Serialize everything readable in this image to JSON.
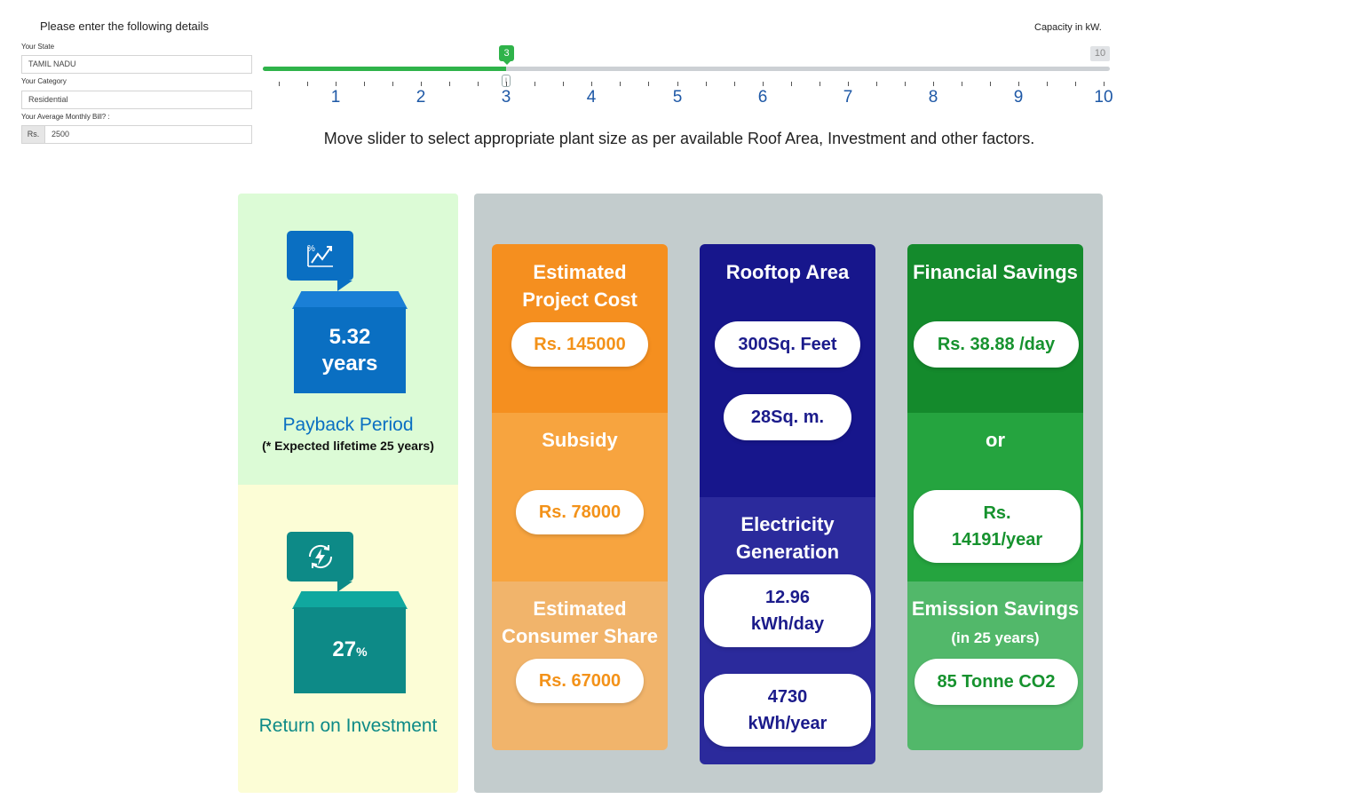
{
  "form": {
    "title": "Please enter the following details",
    "state_label": "Your State",
    "state_value": "TAMIL NADU",
    "category_label": "Your Category",
    "category_value": "Residential",
    "bill_label": "Your Average Monthly Bill? :",
    "bill_prefix": "Rs.",
    "bill_value": "2500"
  },
  "slider": {
    "capacity_label": "Capacity in kW.",
    "current_value": "3",
    "max_value": "10",
    "value": 3,
    "min": 0,
    "max": 10,
    "tick_labels": [
      "1",
      "2",
      "3",
      "4",
      "5",
      "6",
      "7",
      "8",
      "9",
      "10"
    ],
    "hint": "Move slider to select appropriate plant size as per available Roof Area, Investment and other factors."
  },
  "payback": {
    "value": "5.32",
    "unit": "years",
    "title": "Payback Period",
    "note": "(* Expected lifetime 25 years)"
  },
  "roi": {
    "value": "27",
    "unit": "%",
    "title": "Return on Investment"
  },
  "cost": {
    "title_line1": "Estimated",
    "title_line2": "Project Cost",
    "value": "Rs. 145000",
    "subsidy_title": "Subsidy",
    "subsidy_value": "Rs. 78000",
    "share_line1": "Estimated",
    "share_line2": "Consumer Share",
    "share_value": "Rs. 67000"
  },
  "rooftop": {
    "title": "Rooftop Area",
    "sqft": "300Sq. Feet",
    "sqm": "28Sq. m.",
    "gen_line1": "Electricity",
    "gen_line2": "Generation",
    "day_value": "12.96",
    "day_unit": "kWh/day",
    "year_value": "4730",
    "year_unit": "kWh/year"
  },
  "savings": {
    "title": "Financial Savings",
    "per_day": "Rs. 38.88 /day",
    "or": "or",
    "year_line1": "Rs.",
    "year_line2": "14191/year",
    "emission_title": "Emission Savings",
    "emission_sub": "(in 25 years)",
    "emission_value": "85 Tonne CO2"
  },
  "colors": {
    "accent_green": "#2fb34a",
    "payback_blue": "#0a6fc2",
    "roi_teal": "#0d8a87",
    "orange": "#f39219",
    "navy": "#1b1b8b",
    "green": "#16922e"
  },
  "icons": [
    "chart-percent-icon",
    "energy-cycle-icon",
    "drag-handle-icon"
  ]
}
